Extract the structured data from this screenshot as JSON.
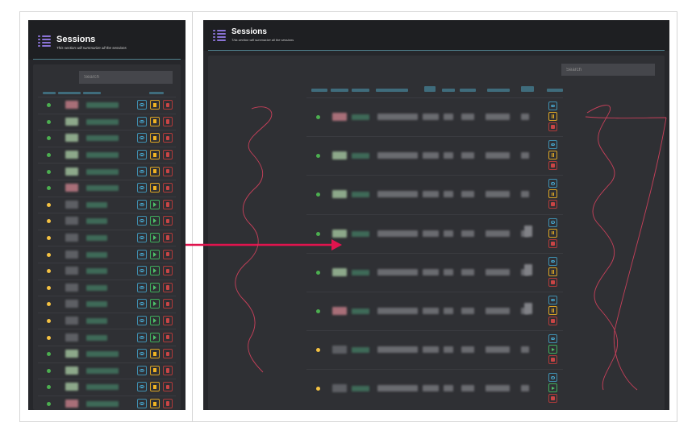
{
  "colors": {
    "background": "#26272b",
    "header": "#1e1f22",
    "accent_menu": "#8a73d6",
    "online": "#4caf50",
    "idle": "#f5c242",
    "view": "#47a9d1",
    "pause": "#f0b323",
    "play": "#4ec26a",
    "delete": "#c94545",
    "arrow": "#e0144e"
  },
  "header": {
    "title": "Sessions",
    "subtitle": "This section will summarize all the sessions"
  },
  "search": {
    "placeholder": "Search"
  },
  "icons": [
    "menu-list-icon",
    "eye-icon",
    "pause-icon",
    "play-icon",
    "trash-icon"
  ],
  "left_sessions": [
    {
      "status": "online",
      "running": true,
      "tag": "#a86f78"
    },
    {
      "status": "online",
      "running": true,
      "tag": "#8da88a"
    },
    {
      "status": "online",
      "running": true,
      "tag": "#8da88a"
    },
    {
      "status": "online",
      "running": true,
      "tag": "#8da88a"
    },
    {
      "status": "online",
      "running": true,
      "tag": "#8da88a"
    },
    {
      "status": "online",
      "running": true,
      "tag": "#a86f78"
    },
    {
      "status": "idle",
      "running": false,
      "tag": "#5d5f64"
    },
    {
      "status": "idle",
      "running": false,
      "tag": "#5d5f64"
    },
    {
      "status": "idle",
      "running": false,
      "tag": "#5d5f64"
    },
    {
      "status": "idle",
      "running": false,
      "tag": "#5d5f64"
    },
    {
      "status": "idle",
      "running": false,
      "tag": "#5d5f64"
    },
    {
      "status": "idle",
      "running": false,
      "tag": "#5d5f64"
    },
    {
      "status": "idle",
      "running": false,
      "tag": "#5d5f64"
    },
    {
      "status": "idle",
      "running": false,
      "tag": "#5d5f64"
    },
    {
      "status": "idle",
      "running": false,
      "tag": "#5d5f64"
    },
    {
      "status": "online",
      "running": true,
      "tag": "#8da88a"
    },
    {
      "status": "online",
      "running": true,
      "tag": "#8da88a"
    },
    {
      "status": "online",
      "running": true,
      "tag": "#8da88a"
    },
    {
      "status": "online",
      "running": true,
      "tag": "#a86f78"
    }
  ],
  "right_sessions": [
    {
      "status": "online",
      "running": true,
      "tag": "#a86f78"
    },
    {
      "status": "online",
      "running": true,
      "tag": "#8da88a"
    },
    {
      "status": "online",
      "running": true,
      "tag": "#8da88a"
    },
    {
      "status": "online",
      "running": true,
      "tag": "#8da88a"
    },
    {
      "status": "online",
      "running": true,
      "tag": "#8da88a"
    },
    {
      "status": "online",
      "running": true,
      "tag": "#a86f78"
    },
    {
      "status": "idle",
      "running": false,
      "tag": "#5d5f64"
    },
    {
      "status": "idle",
      "running": false,
      "tag": "#5d5f64"
    }
  ]
}
